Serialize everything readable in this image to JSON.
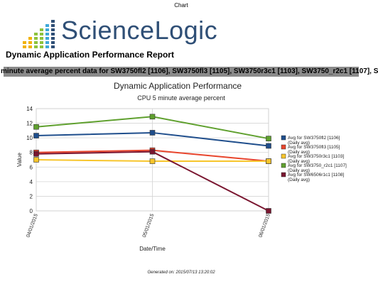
{
  "header": {
    "top_label": "Chart",
    "logo_text": "ScienceLogic",
    "report_title": "Dynamic Application Performance Report",
    "banner": "minute average percent data for SW3750fl2 [1106], SW3750fl3 [1105], SW3750r3c1 [1103], SW3750_r2c1 [1107], S"
  },
  "logo_colors": [
    "#f2b200",
    "#8ec33d",
    "#3ea8d8",
    "#2f4f76"
  ],
  "chart_data": {
    "type": "line",
    "title": "Dynamic Application Performance",
    "subtitle": "CPU 5 minute average percent",
    "xlabel": "Date/Time",
    "ylabel": "Value",
    "categories": [
      "04/01/2015",
      "05/01/2015",
      "06/01/2015"
    ],
    "ylim": [
      0,
      14
    ],
    "yticks": [
      0,
      2,
      4,
      6,
      8,
      10,
      12,
      14
    ],
    "grid": true,
    "legend_position": "right",
    "series": [
      {
        "name": "Avg for SW3750fl2 [1106]",
        "sub": "(Daily avg)",
        "color": "#1f4e8c",
        "values": [
          10.3,
          10.7,
          8.9
        ]
      },
      {
        "name": "Avg for SW3750fl3 [1105]",
        "sub": "(Daily avg)",
        "color": "#e8452c",
        "values": [
          8.0,
          8.3,
          6.8
        ]
      },
      {
        "name": "Avg for SW3750r3c1 [1103]",
        "sub": "(Daily avg)",
        "color": "#f7c52b",
        "values": [
          7.0,
          6.8,
          6.8
        ]
      },
      {
        "name": "Avg for SW3750_r2c1 [1107]",
        "sub": "(Daily avg)",
        "color": "#5fa02e",
        "values": [
          11.5,
          12.9,
          9.9
        ]
      },
      {
        "name": "Avg for SW6506r1c1 [1108]",
        "sub": "(Daily avg)",
        "color": "#7a1630",
        "values": [
          7.8,
          8.1,
          0.0
        ]
      }
    ]
  },
  "footer": {
    "generated": "Generated on: 2015/07/13  13:20:02"
  }
}
